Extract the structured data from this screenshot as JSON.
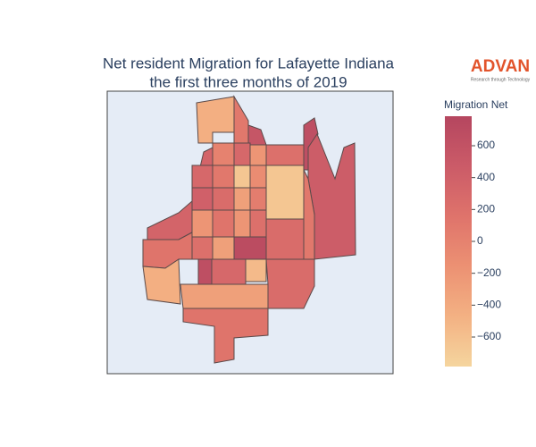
{
  "chart_data": {
    "type": "choropleth",
    "title": "Net resident Migration for Lafayette Indiana",
    "subtitle": "the first three months of 2019",
    "logo": "ADVAN",
    "logo_tagline": "Research through Technology",
    "colorbar_title": "Migration Net",
    "zlim": [
      -785,
      785
    ],
    "zticks": [
      600,
      400,
      200,
      0,
      {
        "value": -200,
        "label": "−200"
      },
      {
        "value": -400,
        "label": "−400"
      },
      {
        "value": -600,
        "label": "−600"
      }
    ],
    "colorscale": [
      "#f5d59e",
      "#f3b183",
      "#ec9173",
      "#df736b",
      "#cb5b68",
      "#b5465f"
    ],
    "values": [
      -450,
      100,
      550,
      650,
      450,
      350,
      150,
      -450,
      -650,
      200,
      100,
      250,
      700,
      650,
      300,
      -550,
      250,
      -300,
      150,
      0,
      300,
      -200,
      300,
      100,
      -650,
      -100,
      400,
      250,
      -300,
      50,
      150,
      -200,
      200,
      -200,
      200,
      -300
    ]
  }
}
